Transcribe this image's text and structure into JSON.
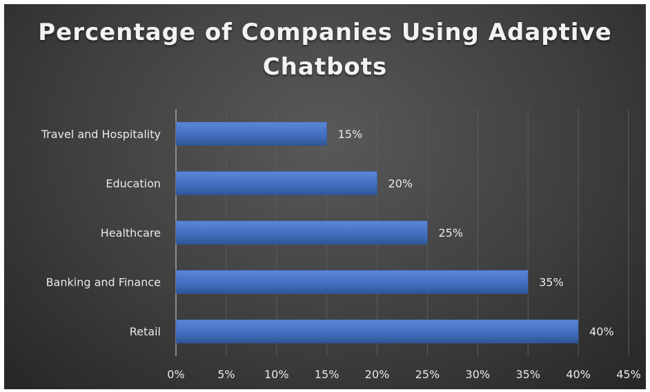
{
  "chart_data": {
    "type": "bar",
    "orientation": "horizontal",
    "title": "Percentage of Companies Using Adaptive Chatbots",
    "categories": [
      "Travel and Hospitality",
      "Education",
      "Healthcare",
      "Banking and Finance",
      "Retail"
    ],
    "values": [
      15,
      20,
      25,
      35,
      40
    ],
    "data_labels": [
      "15%",
      "20%",
      "25%",
      "35%",
      "40%"
    ],
    "x_ticks": [
      "0%",
      "5%",
      "10%",
      "15%",
      "20%",
      "25%",
      "30%",
      "35%",
      "40%",
      "45%"
    ],
    "xlim": [
      0,
      45
    ],
    "grid": true,
    "legend": "none",
    "colors": {
      "bar": "#4472c4",
      "background": "#404040",
      "text": "#eaeaea",
      "grid": "#5c5c5c"
    }
  }
}
